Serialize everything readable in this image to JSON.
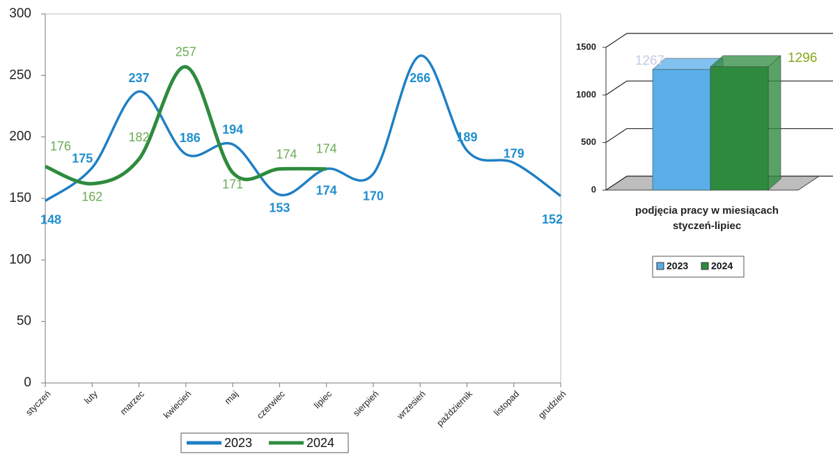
{
  "chart_data": [
    {
      "type": "line",
      "categories": [
        "styczeń",
        "luty",
        "marzec",
        "kwiecień",
        "maj",
        "czerwiec",
        "lipiec",
        "sierpień",
        "wrzesień",
        "październik",
        "listopad",
        "grudzień"
      ],
      "series": [
        {
          "name": "2023",
          "color": "#1f7fc4",
          "label_color": "#1f8fd0",
          "values": [
            148,
            175,
            237,
            186,
            194,
            153,
            174,
            170,
            266,
            189,
            179,
            152
          ]
        },
        {
          "name": "2024",
          "color": "#2e8b3e",
          "label_color": "#6aab55",
          "values": [
            176,
            162,
            182,
            257,
            171,
            174,
            174,
            null,
            null,
            null,
            null,
            null
          ]
        }
      ],
      "ylim": [
        0,
        300
      ],
      "yticks": [
        0,
        50,
        100,
        150,
        200,
        250,
        300
      ],
      "legend": "bottom"
    },
    {
      "type": "bar3d",
      "categories": [
        "podjęcia pracy w miesiącach styczeń-lipiec"
      ],
      "series": [
        {
          "name": "2023",
          "color": "#5aaee8",
          "label_color": "#c3cbea",
          "values": [
            1267
          ]
        },
        {
          "name": "2024",
          "color": "#2e8b3e",
          "label_color": "#86a81a",
          "values": [
            1296
          ]
        }
      ],
      "ylim": [
        0,
        1500
      ],
      "yticks": [
        0,
        500,
        1000,
        1500
      ],
      "legend": "bottom"
    }
  ]
}
